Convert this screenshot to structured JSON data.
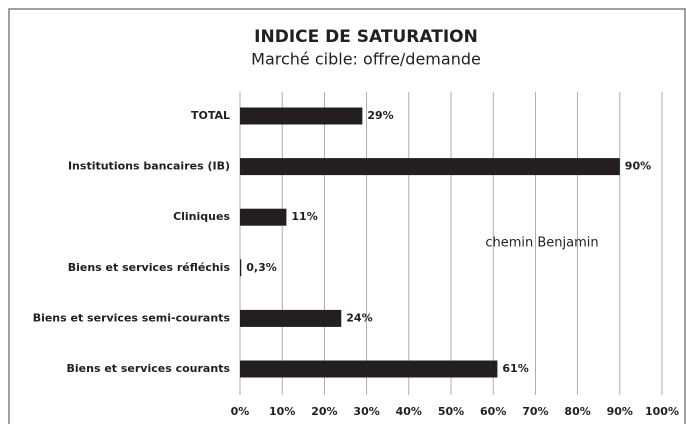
{
  "chart_data": {
    "type": "hbar",
    "title": "INDICE DE SATURATION",
    "subtitle": "Marché cible: offre/demande",
    "categories": [
      "TOTAL",
      "Institutions bancaires (IB)",
      "Cliniques",
      "Biens et services réfléchis",
      "Biens et services semi-courants",
      "Biens et services courants"
    ],
    "values": [
      29,
      90,
      11,
      0.3,
      24,
      61
    ],
    "value_labels": [
      "29%",
      "90%",
      "11%",
      "0,3%",
      "24%",
      "61%"
    ],
    "color": "#231f20",
    "xlim": [
      0,
      100
    ],
    "xticks": [
      {
        "value": 0,
        "label": "0%"
      },
      {
        "value": 10,
        "label": "10%"
      },
      {
        "value": 20,
        "label": "20%"
      },
      {
        "value": 30,
        "label": "30%"
      },
      {
        "value": 40,
        "label": "40%"
      },
      {
        "value": 50,
        "label": "50%"
      },
      {
        "value": 60,
        "label": "60%"
      },
      {
        "value": 70,
        "label": "70%"
      },
      {
        "value": 80,
        "label": "80%"
      },
      {
        "value": 90,
        "label": "90%"
      },
      {
        "value": 100,
        "label": "100%"
      }
    ],
    "grid": true,
    "annotation": "chemin Benjamin"
  }
}
